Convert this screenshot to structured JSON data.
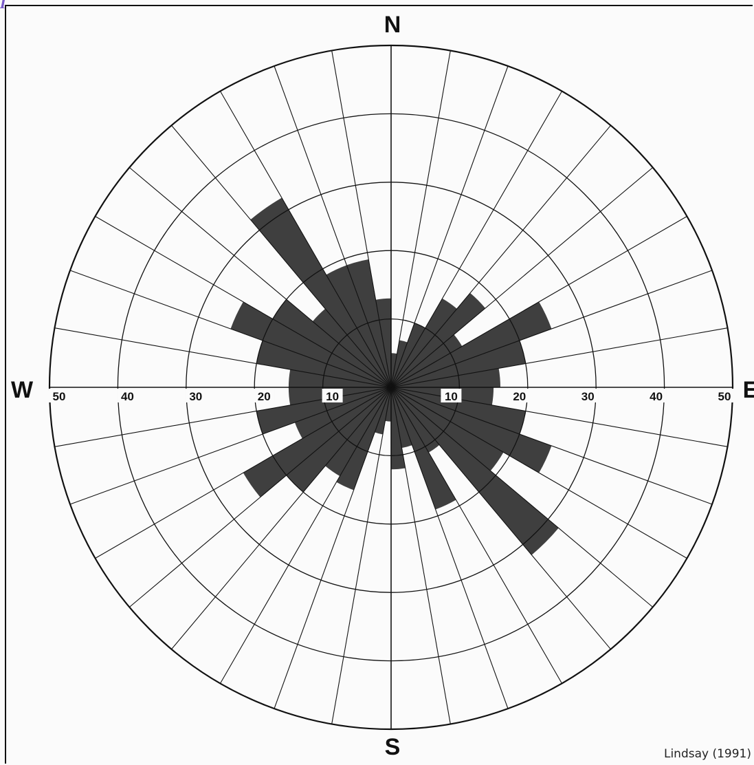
{
  "corner_mark": "I",
  "source": "Lindsay (1991)",
  "colors": {
    "ink": "#111111",
    "fill": "#2f2f2f",
    "paper": "#fbfbfb"
  },
  "chart_data": {
    "type": "rose",
    "bin_width_deg": 10,
    "rings": [
      10,
      20,
      30,
      40,
      50
    ],
    "ring_labels_west": [
      "50",
      "40",
      "30",
      "20",
      "10"
    ],
    "ring_labels_east": [
      "10",
      "20",
      "30",
      "40",
      "50"
    ],
    "compass": {
      "north": "N",
      "south": "S",
      "east": "E",
      "west": "W"
    },
    "grid": true,
    "bins": [
      {
        "from": 0,
        "to": 10,
        "value": 5
      },
      {
        "from": 10,
        "to": 20,
        "value": 7
      },
      {
        "from": 20,
        "to": 30,
        "value": 10
      },
      {
        "from": 30,
        "to": 40,
        "value": 15
      },
      {
        "from": 40,
        "to": 50,
        "value": 18
      },
      {
        "from": 50,
        "to": 60,
        "value": 12
      },
      {
        "from": 60,
        "to": 70,
        "value": 25
      },
      {
        "from": 70,
        "to": 80,
        "value": 20
      },
      {
        "from": 80,
        "to": 90,
        "value": 16
      },
      {
        "from": 90,
        "to": 100,
        "value": 15
      },
      {
        "from": 100,
        "to": 110,
        "value": 20
      },
      {
        "from": 110,
        "to": 120,
        "value": 25
      },
      {
        "from": 120,
        "to": 130,
        "value": 19
      },
      {
        "from": 130,
        "to": 140,
        "value": 32
      },
      {
        "from": 140,
        "to": 150,
        "value": 11
      },
      {
        "from": 150,
        "to": 160,
        "value": 19
      },
      {
        "from": 160,
        "to": 170,
        "value": 9
      },
      {
        "from": 170,
        "to": 180,
        "value": 12
      },
      {
        "from": 180,
        "to": 190,
        "value": 5
      },
      {
        "from": 190,
        "to": 200,
        "value": 7
      },
      {
        "from": 200,
        "to": 210,
        "value": 16
      },
      {
        "from": 210,
        "to": 220,
        "value": 15
      },
      {
        "from": 220,
        "to": 230,
        "value": 20
      },
      {
        "from": 230,
        "to": 240,
        "value": 25
      },
      {
        "from": 240,
        "to": 250,
        "value": 15
      },
      {
        "from": 250,
        "to": 260,
        "value": 20
      },
      {
        "from": 260,
        "to": 270,
        "value": 15
      },
      {
        "from": 270,
        "to": 280,
        "value": 15
      },
      {
        "from": 280,
        "to": 290,
        "value": 20
      },
      {
        "from": 290,
        "to": 300,
        "value": 25
      },
      {
        "from": 300,
        "to": 310,
        "value": 20
      },
      {
        "from": 310,
        "to": 320,
        "value": 15
      },
      {
        "from": 320,
        "to": 330,
        "value": 32
      },
      {
        "from": 330,
        "to": 340,
        "value": 19
      },
      {
        "from": 340,
        "to": 350,
        "value": 19
      },
      {
        "from": 350,
        "to": 360,
        "value": 13
      }
    ]
  }
}
